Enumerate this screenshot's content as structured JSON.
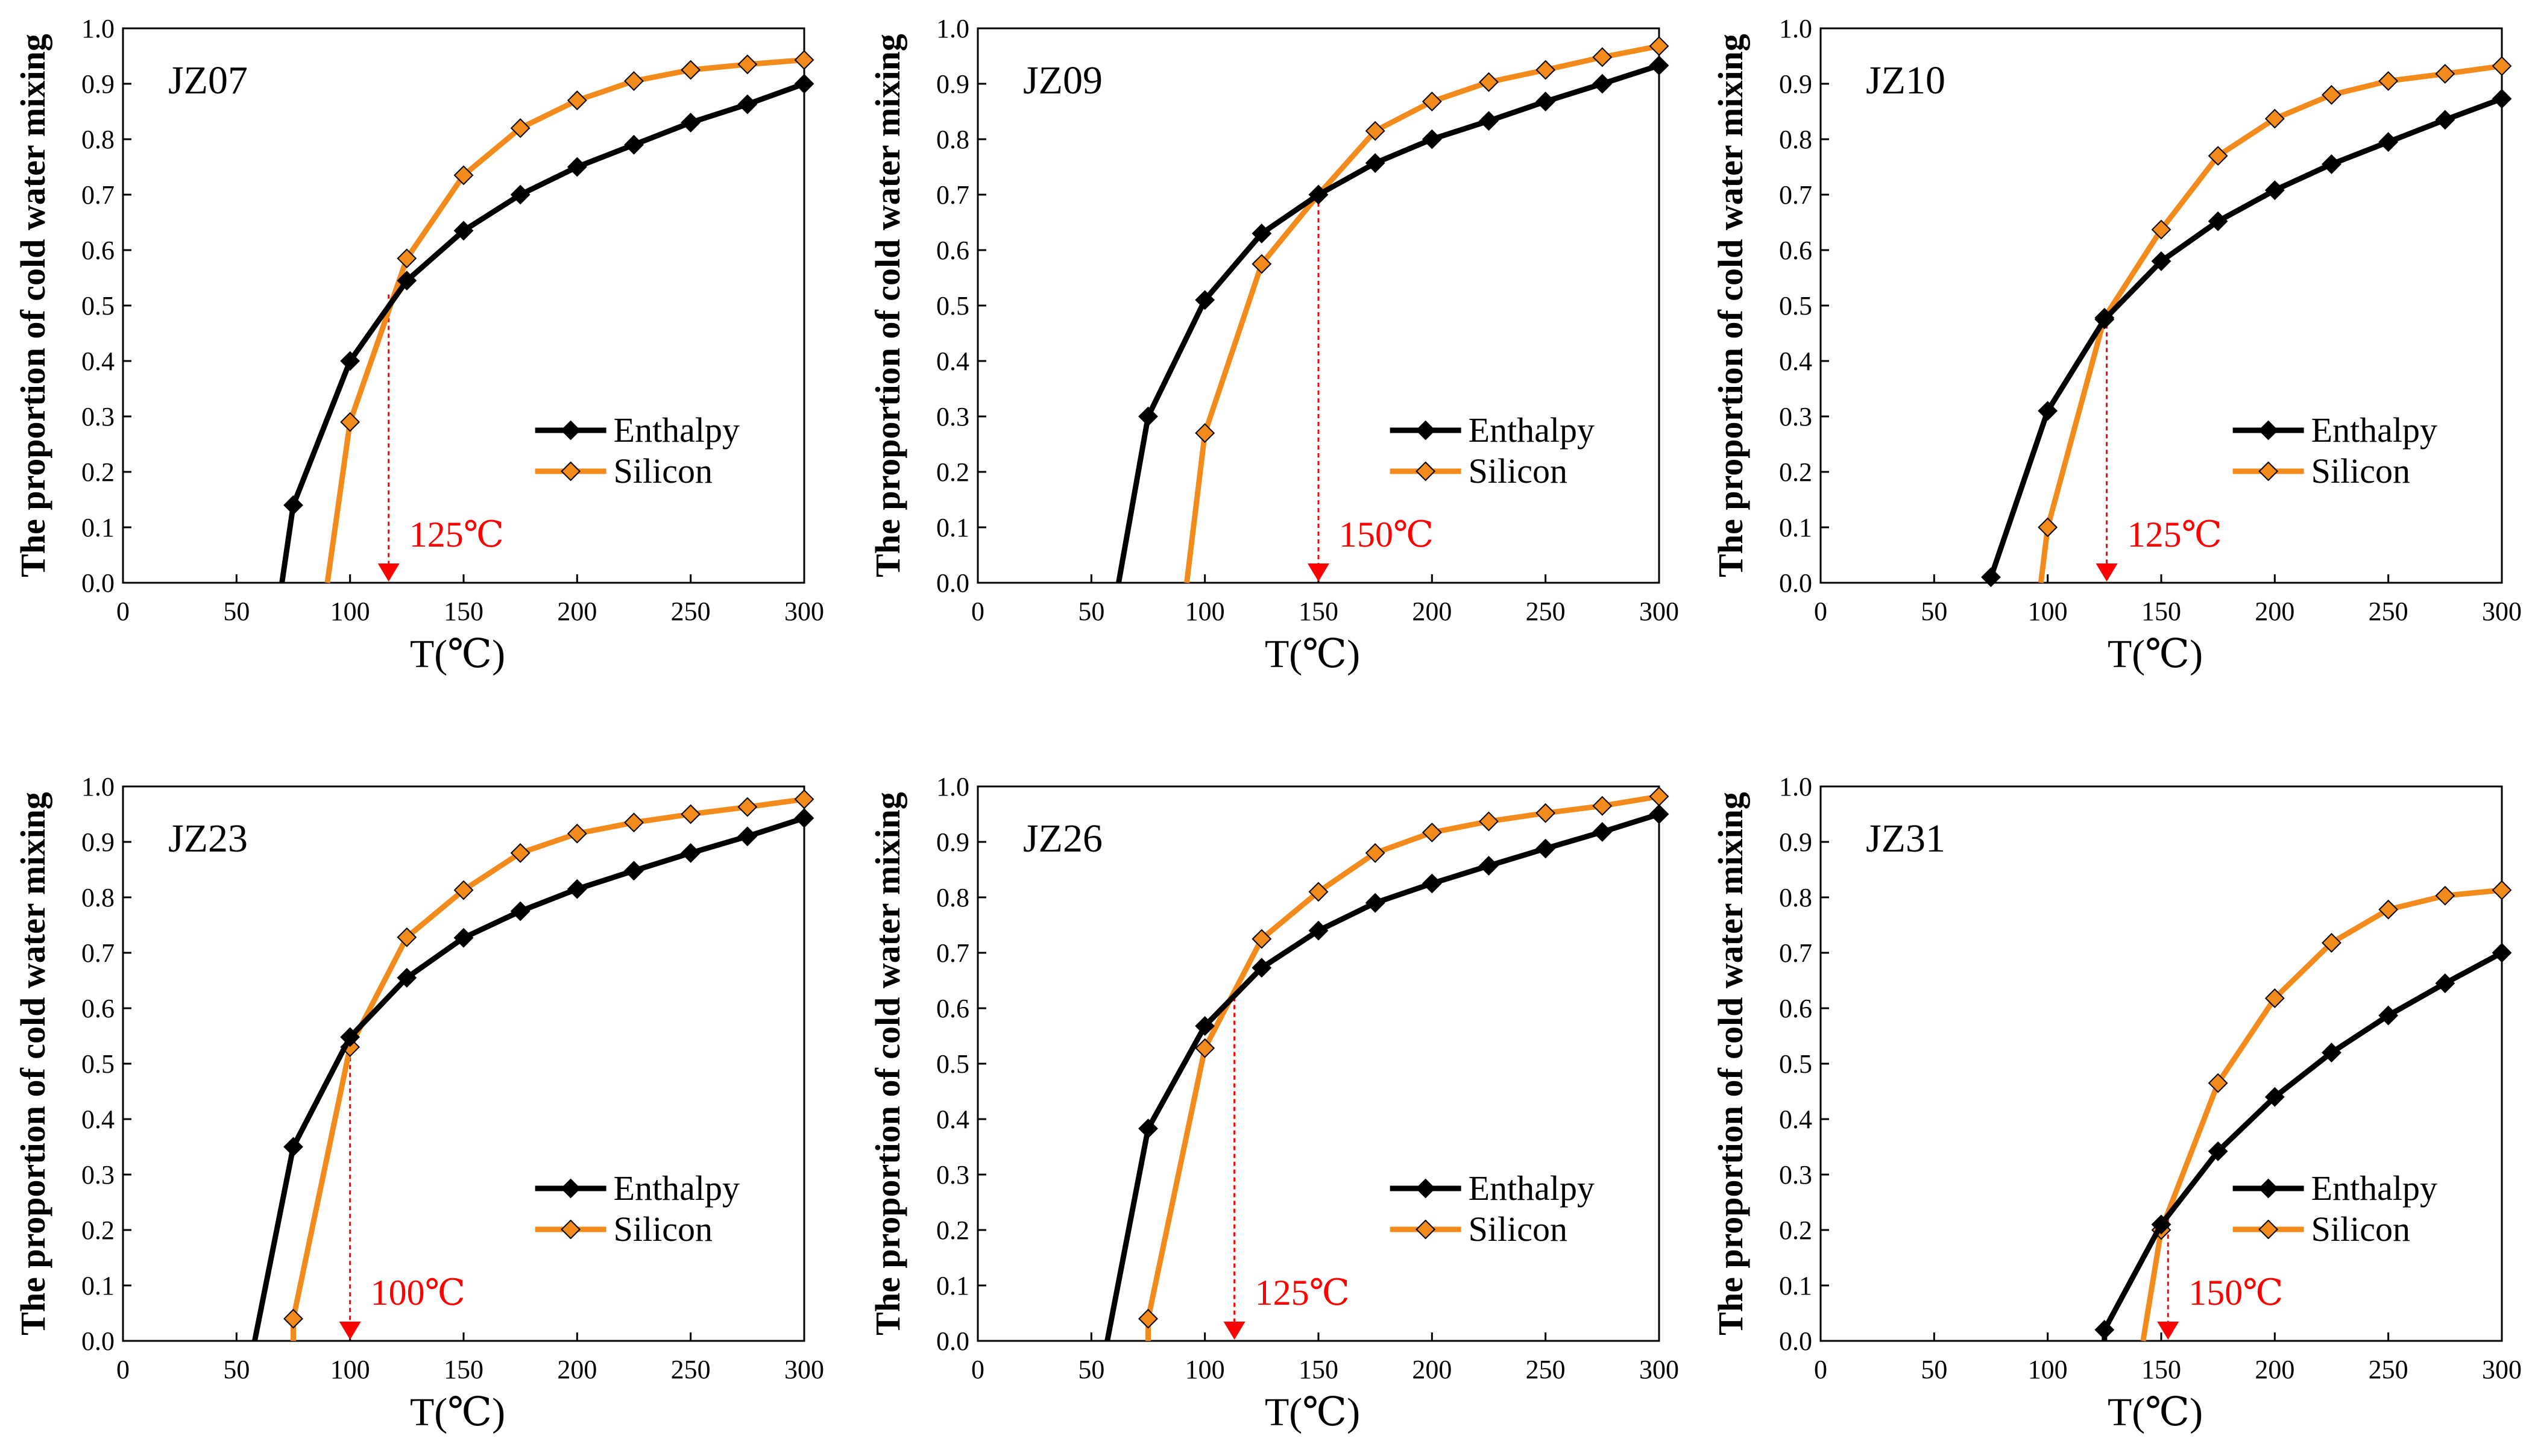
{
  "figure": {
    "colors": {
      "enthalpy": "#000000",
      "silicon": "#f28a1c",
      "marker": "#ff0000"
    },
    "legend_enthalpy": "Enthalpy",
    "legend_silicon": "Silicon"
  },
  "chart_data": [
    {
      "type": "line",
      "title": "JZ07",
      "xlabel": "T(℃)",
      "ylabel": "The proportion of cold water mixing",
      "xlim": [
        0,
        300
      ],
      "ylim": [
        0,
        1.0
      ],
      "xticks": [
        "0",
        "50",
        "100",
        "150",
        "200",
        "250",
        "300"
      ],
      "yticks": [
        "0.0",
        "0.1",
        "0.2",
        "0.3",
        "0.4",
        "0.5",
        "0.6",
        "0.7",
        "0.8",
        "0.9",
        "1.0"
      ],
      "series": [
        {
          "name": "Enthalpy",
          "x": [
            75,
            100,
            125,
            150,
            175,
            200,
            225,
            250,
            275,
            300
          ],
          "y": [
            0.14,
            0.4,
            0.545,
            0.635,
            0.7,
            0.75,
            0.79,
            0.83,
            0.863,
            0.9
          ],
          "line_start": [
            70,
            0
          ]
        },
        {
          "name": "Silicon",
          "x": [
            100,
            125,
            150,
            175,
            200,
            225,
            250,
            275,
            300
          ],
          "y": [
            0.29,
            0.585,
            0.735,
            0.82,
            0.87,
            0.905,
            0.925,
            0.935,
            0.943
          ],
          "line_start": [
            90,
            0
          ]
        }
      ],
      "intersection": {
        "x": 117,
        "y": 0.52
      },
      "annotation": "125℃"
    },
    {
      "type": "line",
      "title": "JZ09",
      "xlabel": "T(℃)",
      "ylabel": "The proportion of cold water mixing",
      "xlim": [
        0,
        300
      ],
      "ylim": [
        0,
        1.0
      ],
      "xticks": [
        "0",
        "50",
        "100",
        "150",
        "200",
        "250",
        "300"
      ],
      "yticks": [
        "0.0",
        "0.1",
        "0.2",
        "0.3",
        "0.4",
        "0.5",
        "0.6",
        "0.7",
        "0.8",
        "0.9",
        "1.0"
      ],
      "series": [
        {
          "name": "Enthalpy",
          "x": [
            75,
            100,
            125,
            150,
            175,
            200,
            225,
            250,
            275,
            300
          ],
          "y": [
            0.3,
            0.51,
            0.63,
            0.7,
            0.757,
            0.8,
            0.833,
            0.868,
            0.9,
            0.933
          ],
          "line_start": [
            62,
            0
          ]
        },
        {
          "name": "Silicon",
          "x": [
            100,
            125,
            150,
            175,
            200,
            225,
            250,
            275,
            300
          ],
          "y": [
            0.27,
            0.575,
            0.7,
            0.815,
            0.868,
            0.903,
            0.925,
            0.948,
            0.968
          ],
          "line_start": [
            92,
            0
          ]
        }
      ],
      "intersection": {
        "x": 150,
        "y": 0.7
      },
      "annotation": "150℃"
    },
    {
      "type": "line",
      "title": "JZ10",
      "xlabel": "T(℃)",
      "ylabel": "The proportion of cold water mixing",
      "xlim": [
        0,
        300
      ],
      "ylim": [
        0,
        1.0
      ],
      "xticks": [
        "0",
        "50",
        "100",
        "150",
        "200",
        "250",
        "300"
      ],
      "yticks": [
        "0.0",
        "0.1",
        "0.2",
        "0.3",
        "0.4",
        "0.5",
        "0.6",
        "0.7",
        "0.8",
        "0.9",
        "1.0"
      ],
      "series": [
        {
          "name": "Enthalpy",
          "x": [
            75,
            100,
            125,
            150,
            175,
            200,
            225,
            250,
            275,
            300
          ],
          "y": [
            0.01,
            0.31,
            0.475,
            0.58,
            0.652,
            0.708,
            0.755,
            0.795,
            0.835,
            0.873
          ],
          "line_start": [
            75,
            0
          ]
        },
        {
          "name": "Silicon",
          "x": [
            100,
            125,
            150,
            175,
            200,
            225,
            250,
            275,
            300
          ],
          "y": [
            0.1,
            0.478,
            0.637,
            0.77,
            0.837,
            0.88,
            0.905,
            0.918,
            0.932
          ],
          "line_start": [
            97,
            0
          ]
        }
      ],
      "intersection": {
        "x": 126,
        "y": 0.48
      },
      "annotation": "125℃"
    },
    {
      "type": "line",
      "title": "JZ23",
      "xlabel": "T(℃)",
      "ylabel": "The proportion of cold water mixing",
      "xlim": [
        0,
        300
      ],
      "ylim": [
        0,
        1.0
      ],
      "xticks": [
        "0",
        "50",
        "100",
        "150",
        "200",
        "250",
        "300"
      ],
      "yticks": [
        "0.0",
        "0.1",
        "0.2",
        "0.3",
        "0.4",
        "0.5",
        "0.6",
        "0.7",
        "0.8",
        "0.9",
        "1.0"
      ],
      "series": [
        {
          "name": "Enthalpy",
          "x": [
            75,
            100,
            125,
            150,
            175,
            200,
            225,
            250,
            275,
            300
          ],
          "y": [
            0.35,
            0.548,
            0.655,
            0.727,
            0.775,
            0.815,
            0.848,
            0.88,
            0.91,
            0.943
          ],
          "line_start": [
            58,
            0
          ]
        },
        {
          "name": "Silicon",
          "x": [
            75,
            100,
            125,
            150,
            175,
            200,
            225,
            250,
            275,
            300
          ],
          "y": [
            0.04,
            0.53,
            0.728,
            0.813,
            0.88,
            0.915,
            0.935,
            0.95,
            0.963,
            0.977
          ],
          "line_start": [
            75,
            0
          ]
        }
      ],
      "intersection": {
        "x": 100,
        "y": 0.54
      },
      "annotation": "100℃"
    },
    {
      "type": "line",
      "title": "JZ26",
      "xlabel": "T(℃)",
      "ylabel": "The proportion of cold water mixing",
      "xlim": [
        0,
        300
      ],
      "ylim": [
        0,
        1.0
      ],
      "xticks": [
        "0",
        "50",
        "100",
        "150",
        "200",
        "250",
        "300"
      ],
      "yticks": [
        "0.0",
        "0.1",
        "0.2",
        "0.3",
        "0.4",
        "0.5",
        "0.6",
        "0.7",
        "0.8",
        "0.9",
        "1.0"
      ],
      "series": [
        {
          "name": "Enthalpy",
          "x": [
            75,
            100,
            125,
            150,
            175,
            200,
            225,
            250,
            275,
            300
          ],
          "y": [
            0.383,
            0.568,
            0.673,
            0.74,
            0.79,
            0.825,
            0.857,
            0.888,
            0.918,
            0.95
          ],
          "line_start": [
            57,
            0
          ]
        },
        {
          "name": "Silicon",
          "x": [
            75,
            100,
            125,
            150,
            175,
            200,
            225,
            250,
            275,
            300
          ],
          "y": [
            0.04,
            0.528,
            0.725,
            0.81,
            0.88,
            0.917,
            0.937,
            0.952,
            0.965,
            0.982
          ],
          "line_start": [
            75,
            0
          ]
        }
      ],
      "intersection": {
        "x": 113,
        "y": 0.62
      },
      "annotation": "125℃"
    },
    {
      "type": "line",
      "title": "JZ31",
      "xlabel": "T(℃)",
      "ylabel": "The proportion of cold water mixing",
      "xlim": [
        0,
        300
      ],
      "ylim": [
        0,
        1.0
      ],
      "xticks": [
        "0",
        "50",
        "100",
        "150",
        "200",
        "250",
        "300"
      ],
      "yticks": [
        "0.0",
        "0.1",
        "0.2",
        "0.3",
        "0.4",
        "0.5",
        "0.6",
        "0.7",
        "0.8",
        "0.9",
        "1.0"
      ],
      "series": [
        {
          "name": "Enthalpy",
          "x": [
            125,
            150,
            175,
            200,
            225,
            250,
            275,
            300
          ],
          "y": [
            0.02,
            0.21,
            0.342,
            0.44,
            0.52,
            0.587,
            0.645,
            0.7
          ],
          "line_start": [
            125,
            0
          ]
        },
        {
          "name": "Silicon",
          "x": [
            150,
            175,
            200,
            225,
            250,
            275,
            300
          ],
          "y": [
            0.2,
            0.465,
            0.618,
            0.718,
            0.778,
            0.803,
            0.813
          ],
          "line_start": [
            142,
            0
          ]
        }
      ],
      "intersection": {
        "x": 153,
        "y": 0.22
      },
      "annotation": "150℃"
    }
  ]
}
